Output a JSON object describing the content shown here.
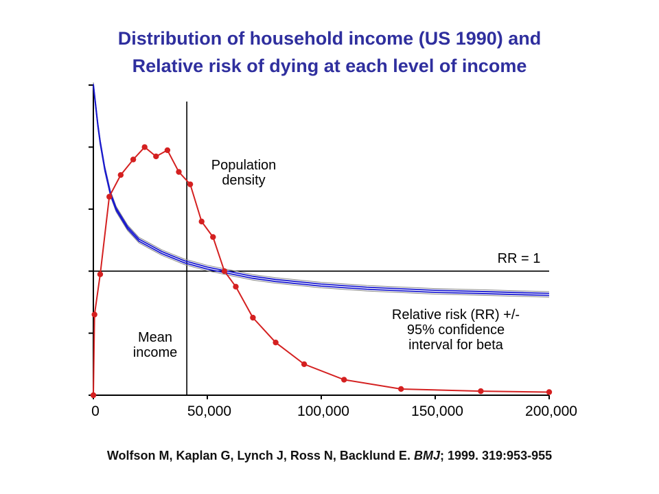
{
  "title_line1": "Distribution of household income (US 1990) and",
  "title_line2": "Relative risk of dying at each level of income",
  "citation": {
    "authors": "Wolfson M, Kaplan G, Lynch J, Ross N, Backlund E.",
    "journal": "BMJ",
    "details": "; 1999. 319:953-955"
  },
  "colors": {
    "title": "#2f2f9e",
    "density": "#d42020",
    "rr": "#1a1ad0",
    "ci": "#888888",
    "axis": "#000000"
  },
  "chart_data": {
    "type": "line",
    "title": "Distribution of household income (US 1990) and Relative risk of dying at each level of income",
    "xlabel": "",
    "ylabel": "",
    "xlim": [
      0,
      200000
    ],
    "x_ticks": [
      0,
      50000,
      100000,
      150000,
      200000
    ],
    "x_tick_labels": [
      "0",
      "50,000",
      "100,000",
      "150,000",
      "200,000"
    ],
    "ylim": [
      0,
      1
    ],
    "y_ticks": [
      0,
      0.2,
      0.4,
      0.6,
      0.8,
      1.0
    ],
    "grid": false,
    "mean_income": 41000,
    "series": [
      {
        "name": "Population density",
        "kind": "density",
        "x": [
          0,
          500,
          3000,
          7000,
          12000,
          17500,
          22500,
          27500,
          32500,
          37500,
          42500,
          47500,
          52500,
          57500,
          62500,
          70000,
          80000,
          92500,
          110000,
          135000,
          170000,
          200000
        ],
        "y": [
          0.0,
          0.26,
          0.39,
          0.64,
          0.71,
          0.76,
          0.8,
          0.77,
          0.79,
          0.72,
          0.68,
          0.56,
          0.51,
          0.4,
          0.35,
          0.25,
          0.17,
          0.1,
          0.05,
          0.02,
          0.013,
          0.01
        ]
      },
      {
        "name": "Relative risk (RR)",
        "kind": "rr",
        "x": [
          0,
          1000,
          2000,
          3000,
          5000,
          7500,
          10000,
          15000,
          20000,
          25000,
          30000,
          40000,
          50000,
          60000,
          70000,
          80000,
          100000,
          120000,
          150000,
          175000,
          200000
        ],
        "y": [
          1.0,
          0.935,
          0.87,
          0.815,
          0.73,
          0.65,
          0.6,
          0.54,
          0.5,
          0.48,
          0.46,
          0.43,
          0.41,
          0.395,
          0.38,
          0.37,
          0.355,
          0.345,
          0.335,
          0.33,
          0.325
        ]
      }
    ],
    "rr_one_level": 0.4,
    "annotations": [
      {
        "id": "population-density",
        "lines": [
          "Population",
          "density"
        ]
      },
      {
        "id": "rr-equals-1",
        "lines": [
          "RR = 1"
        ]
      },
      {
        "id": "rr-ci",
        "lines": [
          "Relative risk (RR) +/-",
          "95% confidence",
          "interval for beta"
        ]
      },
      {
        "id": "mean-income",
        "lines": [
          "Mean",
          "income"
        ]
      }
    ]
  }
}
